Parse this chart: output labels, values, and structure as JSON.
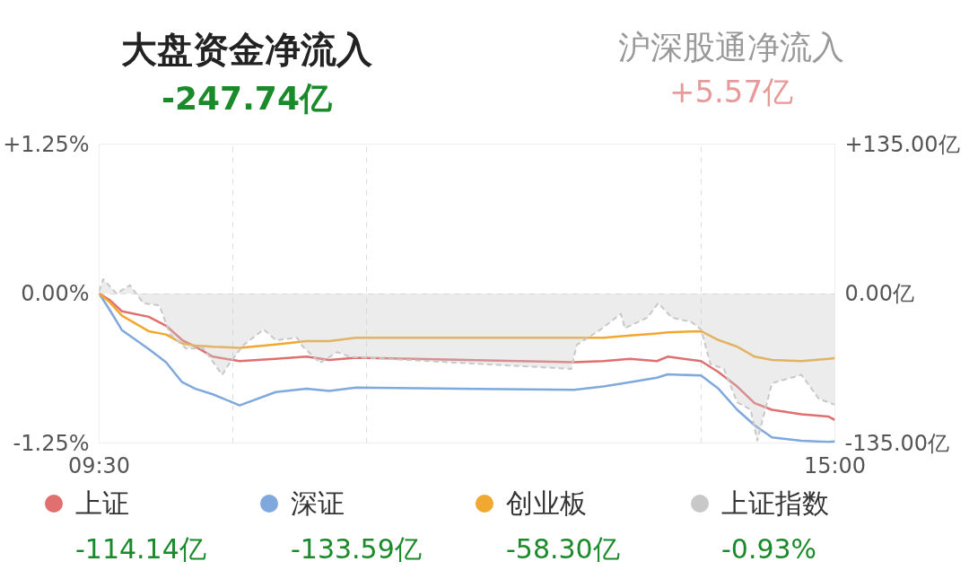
{
  "chart_data": {
    "type": "line",
    "title": "大盘资金净流入",
    "subtitle": "-247.74亿",
    "annotations": [
      "沪深股通净流入",
      "+5.57亿",
      "-114.14亿",
      "-133.59亿",
      "-58.30亿",
      "-0.93%"
    ],
    "x": [
      9.5,
      9.58,
      9.67,
      9.87,
      10,
      10.12,
      10.22,
      10.35,
      10.55,
      10.82,
      11.05,
      11.22,
      11.42,
      13.05,
      13.27,
      13.47,
      13.67,
      13.75,
      14,
      14.13,
      14.27,
      14.4,
      14.53,
      14.75,
      14.95,
      15
    ],
    "xlim": [
      9.5,
      15
    ],
    "xticks": [
      {
        "value": 9.5,
        "label": "09:30"
      },
      {
        "value": 10.5,
        "label": null
      },
      {
        "value": 11.5,
        "label": null
      },
      {
        "value": 14,
        "label": null
      },
      {
        "value": 15,
        "label": "15:00"
      }
    ],
    "ylim": [
      -1.25,
      1.25
    ],
    "yticks": [
      {
        "value": 1.25,
        "label": "+1.25%"
      },
      {
        "value": 0,
        "label": "0.00%"
      },
      {
        "value": -1.25,
        "label": "-1.25%"
      }
    ],
    "y2lim": [
      -135,
      135
    ],
    "y2ticks": [
      {
        "value": 135,
        "label": "+135.00亿"
      },
      {
        "value": 0,
        "label": "0.00亿"
      },
      {
        "value": -135,
        "label": "-135.00亿"
      }
    ],
    "grid": true,
    "legend": "bottom",
    "series": [
      {
        "name": "上证",
        "color": "#e07070",
        "axis": "y2",
        "values": [
          0,
          -6,
          -16,
          -21,
          -29,
          -42,
          -48,
          -57,
          -61,
          -59,
          -57,
          -60,
          -58,
          -62,
          -61,
          -59,
          -61,
          -57,
          -61,
          -71,
          -84,
          -99,
          -105,
          -109,
          -111,
          -114.14
        ]
      },
      {
        "name": "深证",
        "color": "#7fa9dc",
        "axis": "y2",
        "values": [
          0,
          -15,
          -33,
          -50,
          -62,
          -80,
          -86,
          -91,
          -101,
          -89,
          -86,
          -88,
          -85,
          -87,
          -84,
          -80,
          -76,
          -73,
          -74,
          -86,
          -105,
          -119,
          -130,
          -133,
          -134,
          -133.59
        ]
      },
      {
        "name": "创业板",
        "color": "#f0a830",
        "axis": "y2",
        "values": [
          0,
          -8,
          -20,
          -34,
          -37,
          -45,
          -47,
          -48,
          -49,
          -46,
          -43,
          -43,
          -40,
          -40,
          -40,
          -38,
          -36,
          -35,
          -34,
          -42,
          -48,
          -57,
          -60,
          -61,
          -59,
          -58.3
        ]
      },
      {
        "name": "上证指数",
        "color": "#c8c8c8",
        "type": "area",
        "line_style": "dashed",
        "x": [
          9.5,
          9.53,
          9.63,
          9.73,
          9.83,
          9.95,
          10.03,
          10.15,
          10.28,
          10.42,
          10.47,
          10.58,
          10.73,
          10.82,
          10.98,
          11.02,
          11.15,
          11.28,
          11.38,
          13.03,
          13.07,
          13.25,
          13.4,
          13.43,
          13.6,
          13.68,
          13.78,
          13.93,
          14,
          14.07,
          14.17,
          14.27,
          14.37,
          14.42,
          14.53,
          14.75,
          14.88,
          15
        ],
        "values": [
          0.02,
          0.12,
          0,
          0.07,
          -0.08,
          -0.1,
          -0.34,
          -0.46,
          -0.46,
          -0.68,
          -0.59,
          -0.43,
          -0.3,
          -0.39,
          -0.37,
          -0.44,
          -0.58,
          -0.49,
          -0.53,
          -0.63,
          -0.43,
          -0.3,
          -0.17,
          -0.29,
          -0.2,
          -0.08,
          -0.2,
          -0.24,
          -0.3,
          -0.59,
          -0.63,
          -0.91,
          -0.97,
          -1.23,
          -0.75,
          -0.68,
          -0.88,
          -0.93
        ]
      }
    ]
  }
}
